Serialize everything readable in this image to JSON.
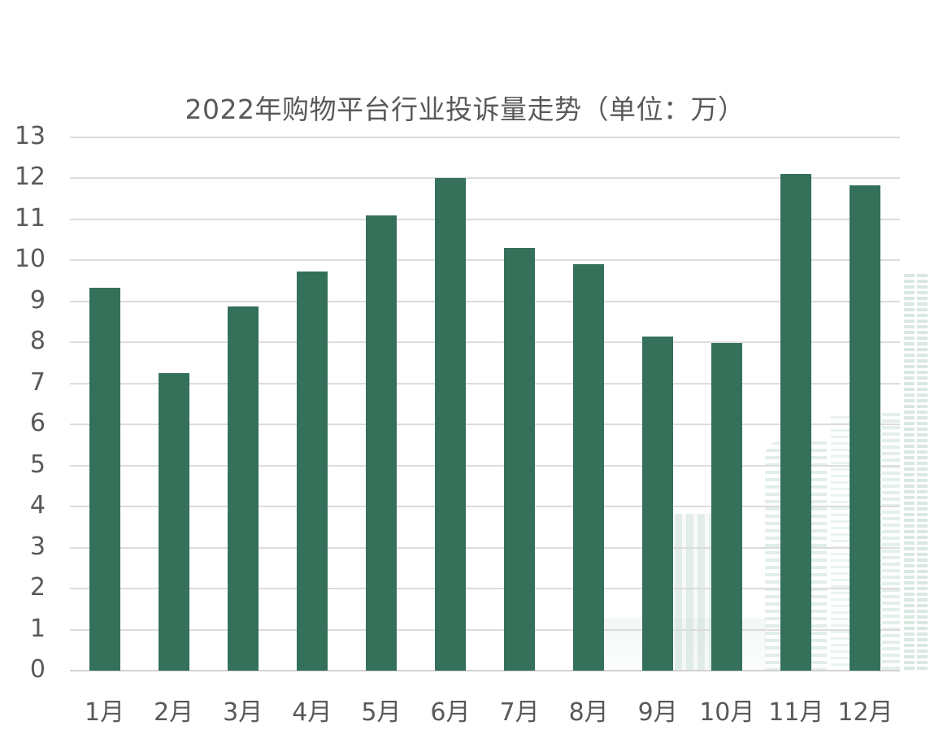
{
  "page": {
    "background": "#ffffff"
  },
  "chart_data": {
    "type": "bar",
    "title": "2022年购物平台行业投诉量走势（单位：万）",
    "unit_label": "万",
    "categories": [
      "1月",
      "2月",
      "3月",
      "4月",
      "5月",
      "6月",
      "7月",
      "8月",
      "9月",
      "10月",
      "11月",
      "12月"
    ],
    "values": [
      9.33,
      7.25,
      8.88,
      9.73,
      11.1,
      12,
      10.3,
      9.9,
      8.15,
      7.98,
      12.1,
      11.83
    ],
    "xlabel": "",
    "ylabel": "",
    "ylim": [
      0,
      13
    ],
    "y_tick_step": 1,
    "y_tick_labels": [
      "0",
      "1",
      "2",
      "3",
      "4",
      "5",
      "6",
      "7",
      "8",
      "9",
      "10",
      "11",
      "12",
      "13"
    ],
    "grid": "horizontal",
    "legend": "none",
    "bar_color": "#34705a"
  },
  "style": {
    "title_color": "#595959",
    "axis_label_color": "#595959",
    "gridline_color": "#dcdcdc",
    "baseline_color": "#d2d2d2",
    "background_color": "#ffffff",
    "decoration_color": "#d9e8e0"
  },
  "decoration": {
    "description": "faint light-green city skyline watermark in lower-right of plot"
  }
}
